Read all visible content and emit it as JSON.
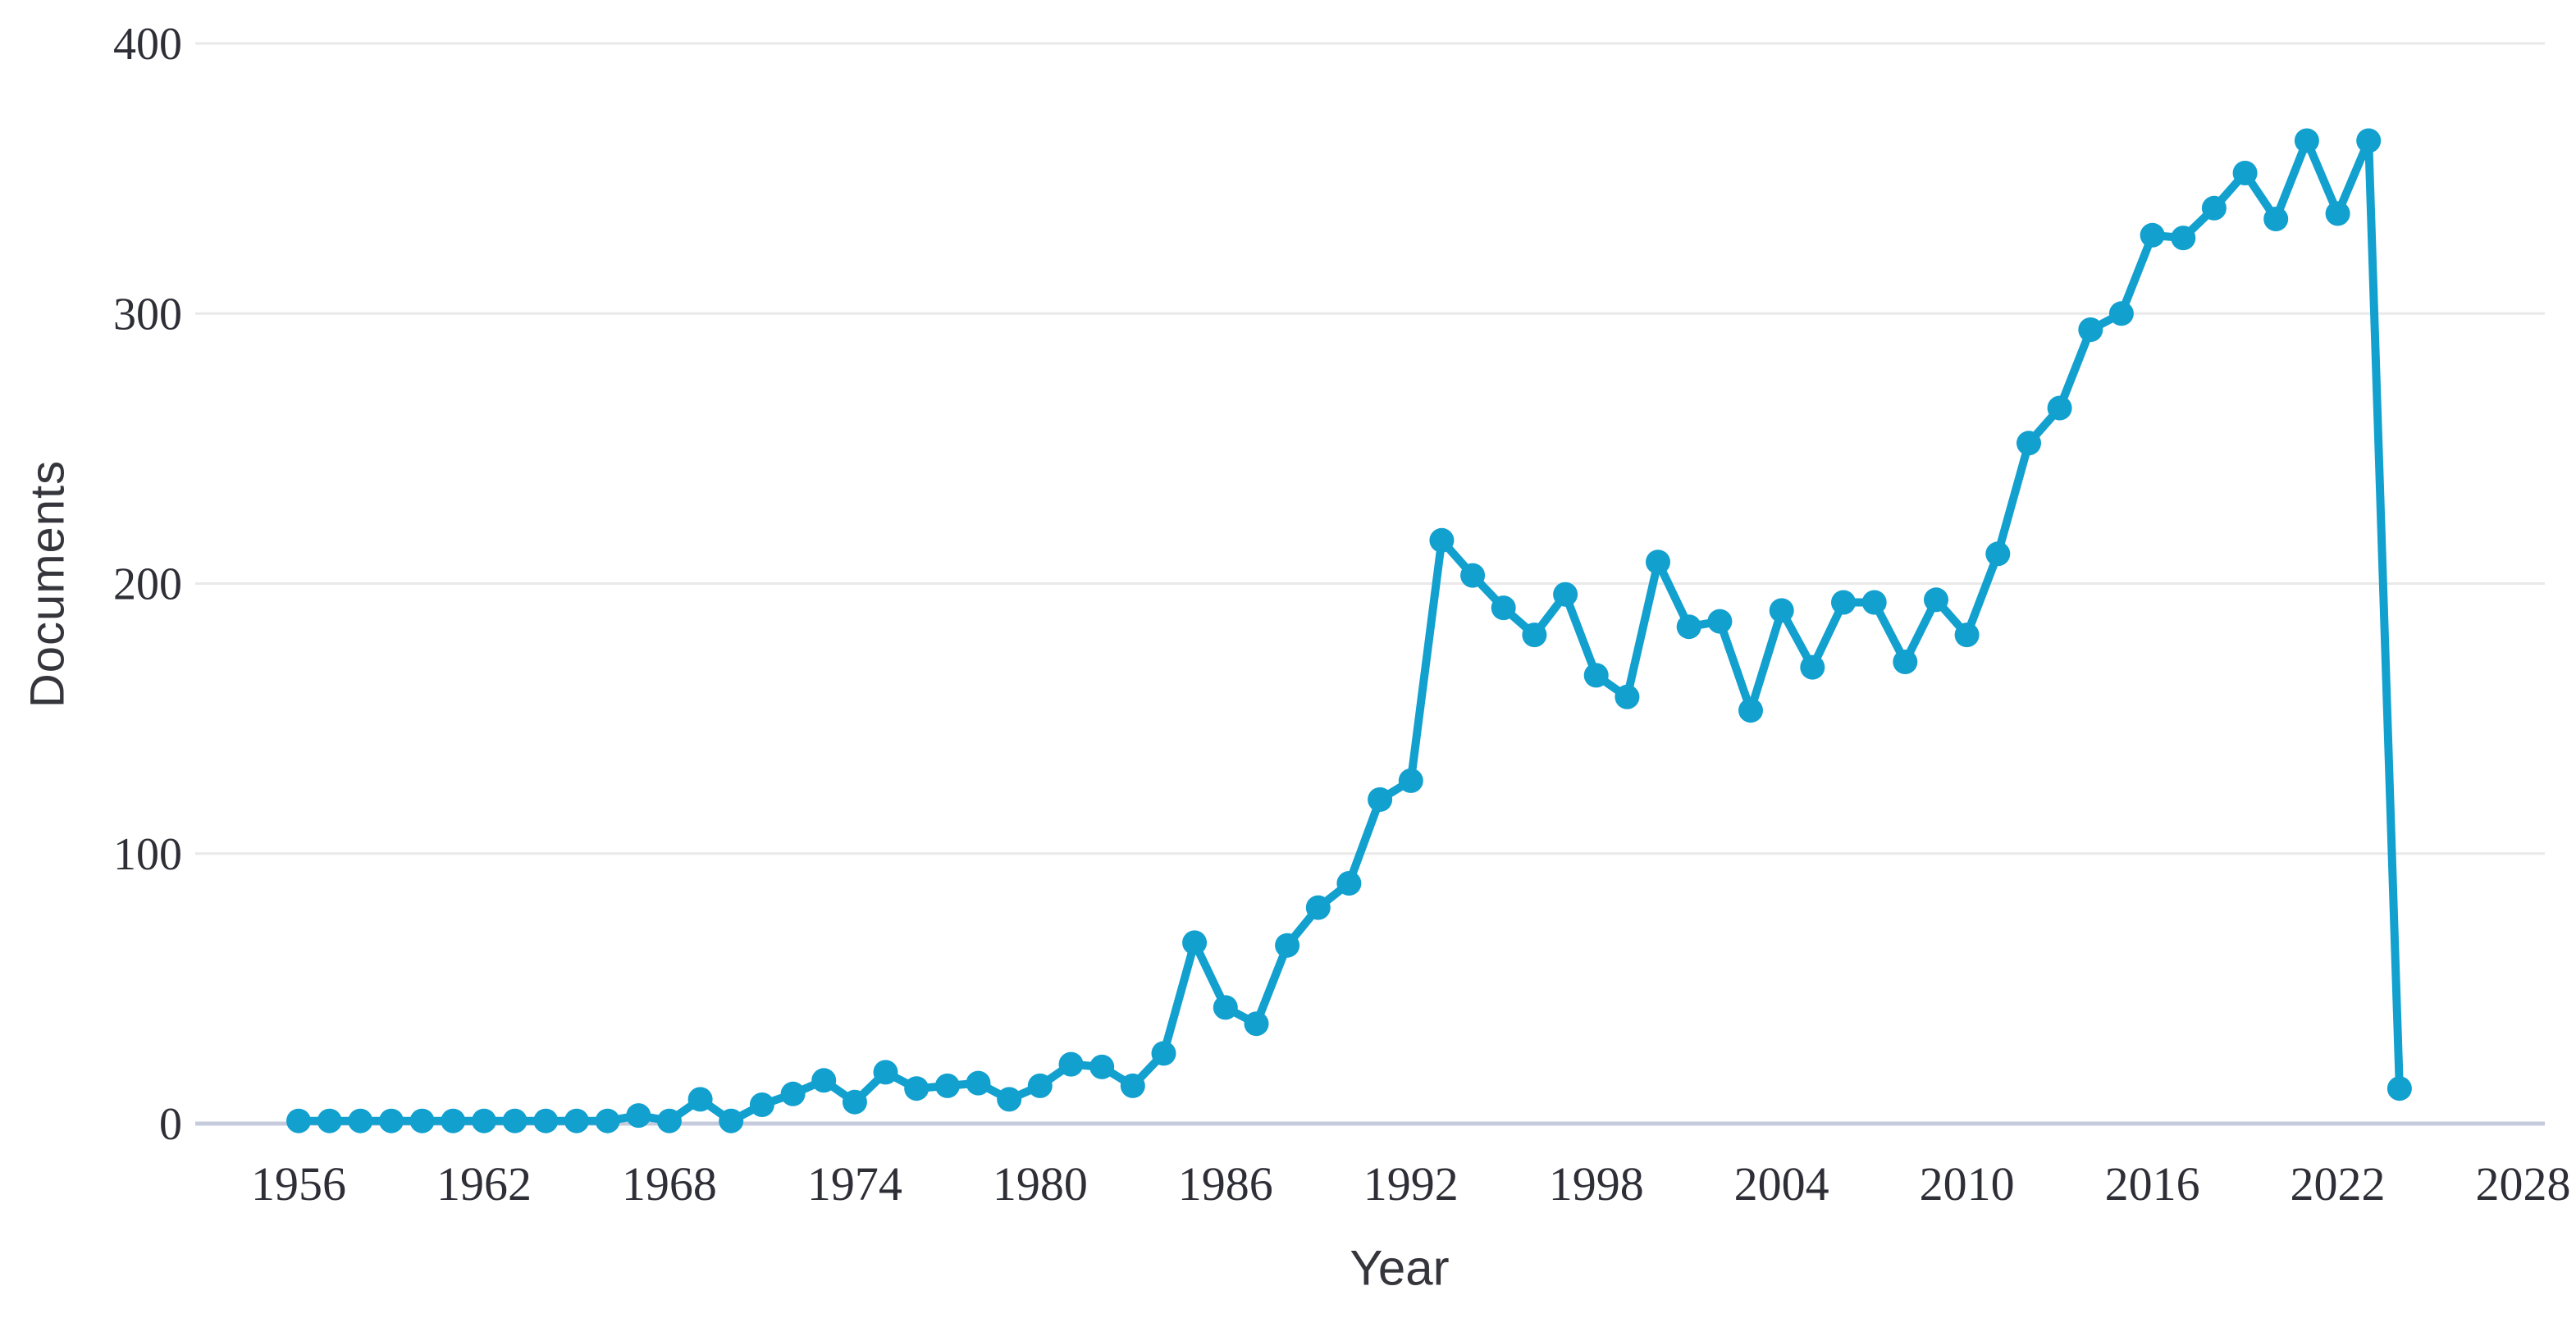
{
  "chart_data": {
    "type": "line",
    "title": "",
    "xlabel": "Year",
    "ylabel": "Documents",
    "x_ticks": [
      1956,
      1962,
      1968,
      1974,
      1980,
      1986,
      1992,
      1998,
      2004,
      2010,
      2016,
      2022,
      2028
    ],
    "y_ticks": [
      0,
      100,
      200,
      300,
      400
    ],
    "xlim": [
      1953,
      2030
    ],
    "ylim": [
      0,
      400
    ],
    "grid": "horizontal-gridlines-on",
    "legend": "none",
    "marker": "circle",
    "line_color": "#12a0cf",
    "gridline_color": "#e9e9e9",
    "axis_line_color": "#c5cbdd",
    "tick_label_color": "#2e2e36",
    "axis_title_color": "#35353c",
    "series": [
      {
        "name": "Documents",
        "x": [
          1956,
          1957,
          1958,
          1959,
          1960,
          1961,
          1962,
          1963,
          1964,
          1965,
          1966,
          1967,
          1968,
          1969,
          1970,
          1971,
          1972,
          1973,
          1974,
          1975,
          1976,
          1977,
          1978,
          1979,
          1980,
          1981,
          1982,
          1983,
          1984,
          1985,
          1986,
          1987,
          1988,
          1989,
          1990,
          1991,
          1992,
          1993,
          1994,
          1995,
          1996,
          1997,
          1998,
          1999,
          2000,
          2001,
          2002,
          2003,
          2004,
          2005,
          2006,
          2007,
          2008,
          2009,
          2010,
          2011,
          2012,
          2013,
          2014,
          2015,
          2016,
          2017,
          2018,
          2019,
          2020,
          2021,
          2022,
          2023,
          2024
        ],
        "values": [
          1,
          1,
          1,
          1,
          1,
          1,
          1,
          1,
          1,
          1,
          1,
          3,
          1,
          9,
          1,
          7,
          11,
          16,
          8,
          19,
          13,
          14,
          15,
          9,
          14,
          22,
          21,
          14,
          26,
          67,
          43,
          37,
          66,
          80,
          89,
          120,
          127,
          216,
          203,
          191,
          181,
          196,
          166,
          158,
          208,
          184,
          186,
          153,
          190,
          169,
          193,
          193,
          171,
          194,
          181,
          211,
          252,
          265,
          294,
          300,
          329,
          328,
          339,
          352,
          335,
          364,
          337,
          364,
          13
        ]
      }
    ]
  }
}
